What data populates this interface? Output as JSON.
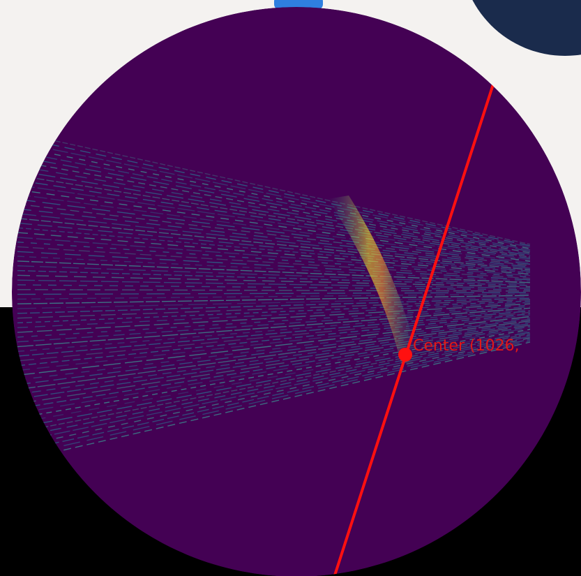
{
  "annotation": {
    "label": "Center (1026, "
  }
}
